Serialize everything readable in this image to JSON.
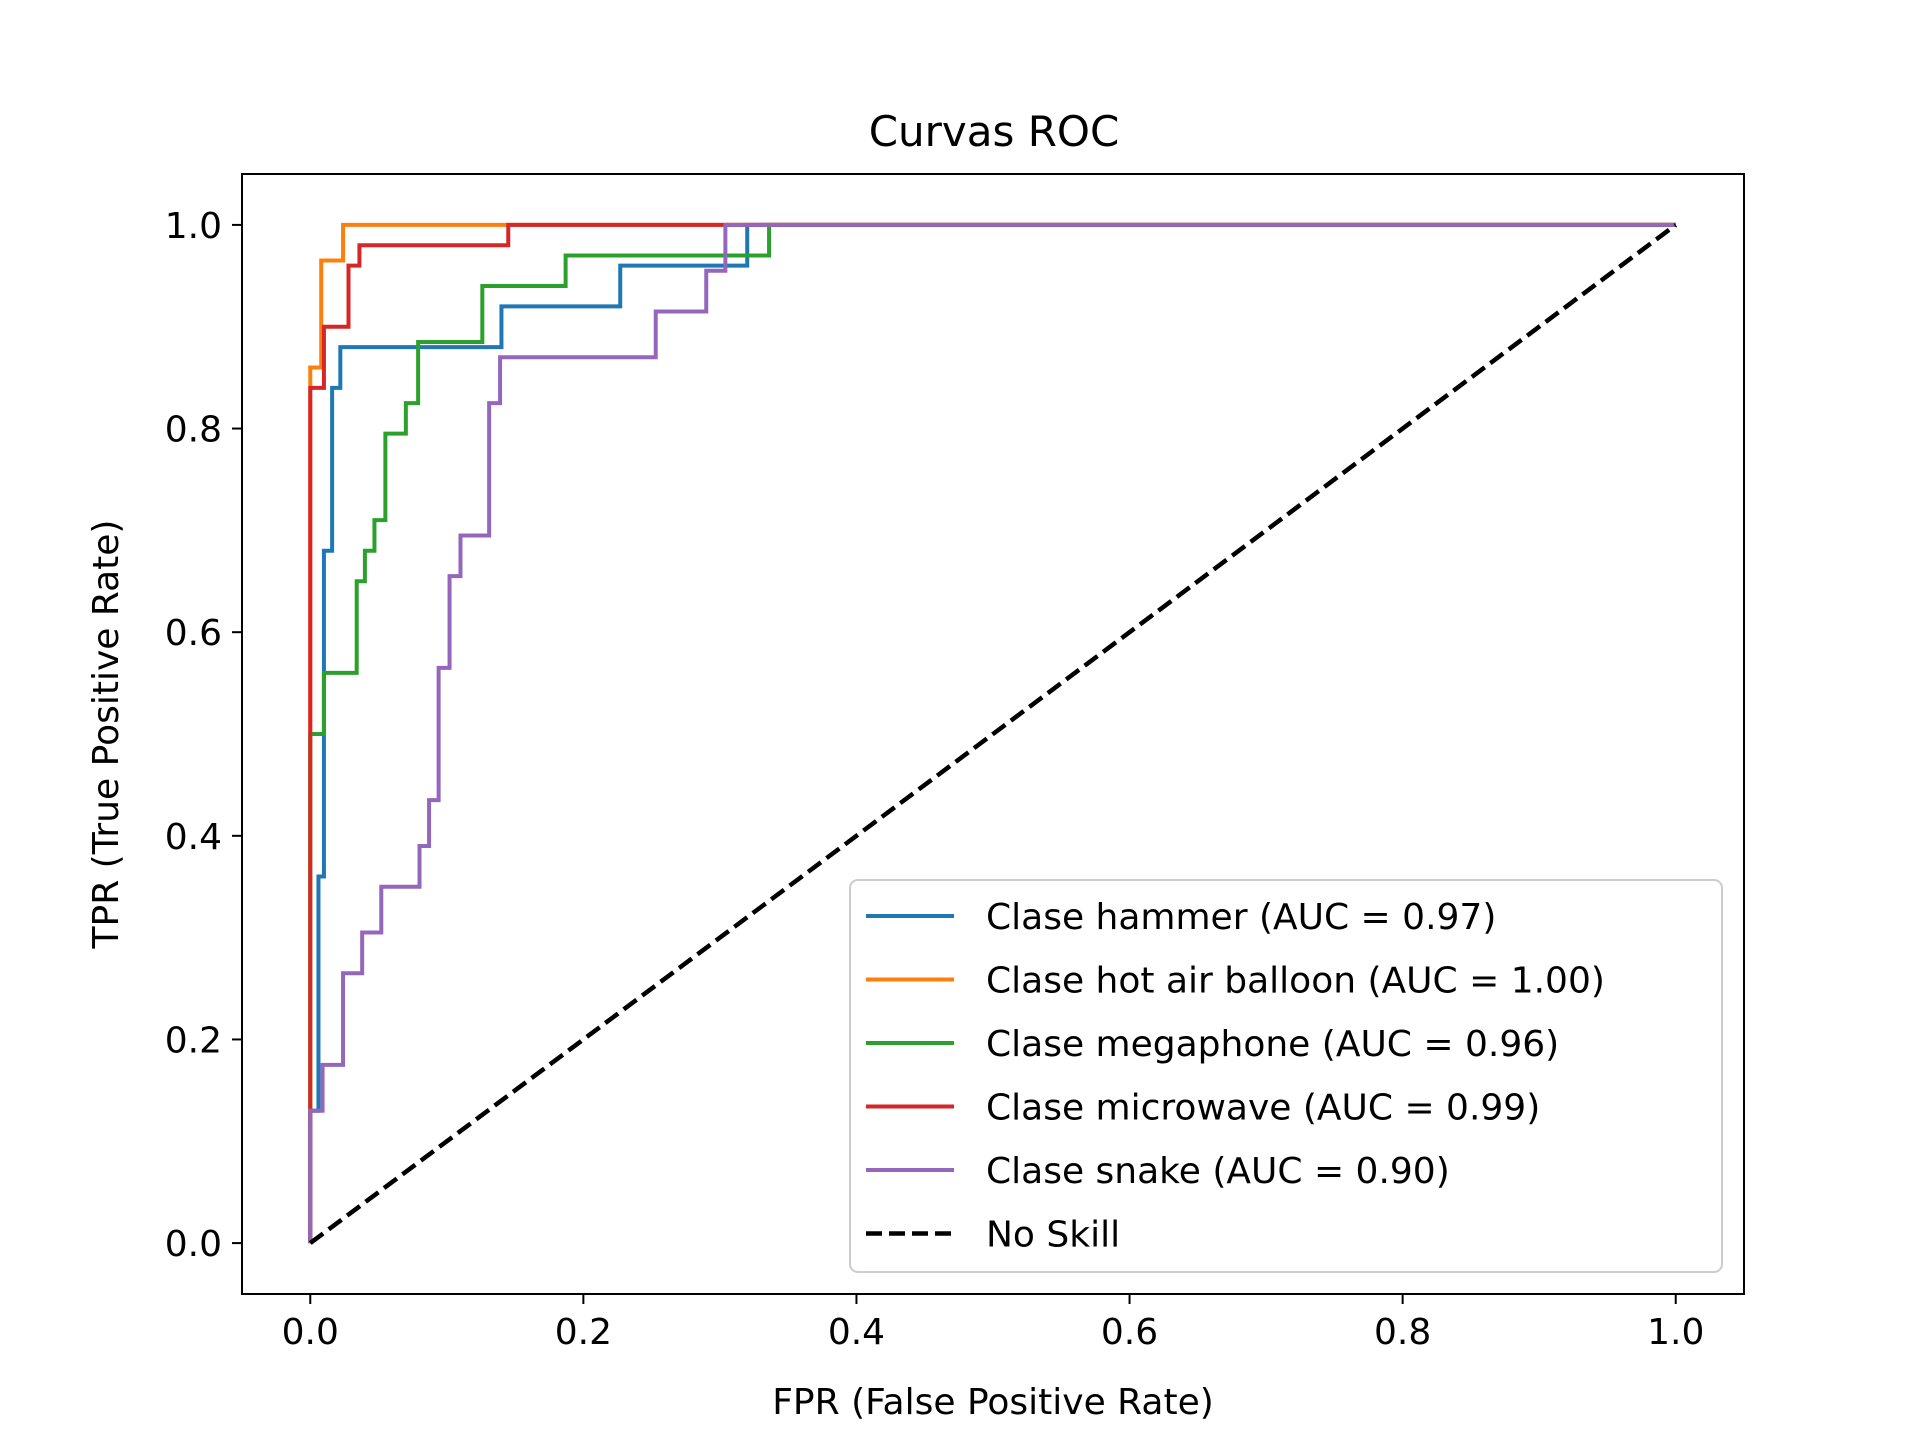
{
  "chart_data": {
    "type": "line",
    "title": "Curvas ROC",
    "xlabel": "FPR (False Positive Rate)",
    "ylabel": "TPR (True Positive Rate)",
    "xlim": [
      -0.05,
      1.05
    ],
    "ylim": [
      -0.05,
      1.05
    ],
    "x_ticks": [
      "0.0",
      "0.2",
      "0.4",
      "0.6",
      "0.8",
      "1.0"
    ],
    "y_ticks": [
      "0.0",
      "0.2",
      "0.4",
      "0.6",
      "0.8",
      "1.0"
    ],
    "grid": false,
    "legend_position": "lower-right",
    "series": [
      {
        "name": "Clase hammer (AUC = 0.97)",
        "color": "#1f77b4",
        "dash": false,
        "points": [
          [
            0,
            0
          ],
          [
            0,
            0.13
          ],
          [
            0.006,
            0.13
          ],
          [
            0.006,
            0.36
          ],
          [
            0.01,
            0.36
          ],
          [
            0.01,
            0.68
          ],
          [
            0.016,
            0.68
          ],
          [
            0.016,
            0.84
          ],
          [
            0.022,
            0.84
          ],
          [
            0.022,
            0.88
          ],
          [
            0.14,
            0.88
          ],
          [
            0.14,
            0.92
          ],
          [
            0.227,
            0.92
          ],
          [
            0.227,
            0.96
          ],
          [
            0.32,
            0.96
          ],
          [
            0.32,
            1.0
          ],
          [
            1.0,
            1.0
          ]
        ]
      },
      {
        "name": "Clase hot air balloon (AUC = 1.00)",
        "color": "#ff7f0e",
        "dash": false,
        "points": [
          [
            0,
            0
          ],
          [
            0,
            0.86
          ],
          [
            0.008,
            0.86
          ],
          [
            0.008,
            0.965
          ],
          [
            0.024,
            0.965
          ],
          [
            0.024,
            1.0
          ],
          [
            1.0,
            1.0
          ]
        ]
      },
      {
        "name": "Clase megaphone (AUC = 0.96)",
        "color": "#2ca02c",
        "dash": false,
        "points": [
          [
            0,
            0
          ],
          [
            0,
            0.5
          ],
          [
            0.01,
            0.5
          ],
          [
            0.01,
            0.56
          ],
          [
            0.034,
            0.56
          ],
          [
            0.034,
            0.65
          ],
          [
            0.04,
            0.65
          ],
          [
            0.04,
            0.68
          ],
          [
            0.047,
            0.68
          ],
          [
            0.047,
            0.71
          ],
          [
            0.055,
            0.71
          ],
          [
            0.055,
            0.795
          ],
          [
            0.07,
            0.795
          ],
          [
            0.07,
            0.825
          ],
          [
            0.079,
            0.825
          ],
          [
            0.079,
            0.885
          ],
          [
            0.126,
            0.885
          ],
          [
            0.126,
            0.94
          ],
          [
            0.187,
            0.94
          ],
          [
            0.187,
            0.97
          ],
          [
            0.3,
            0.97
          ],
          [
            0.336,
            0.97
          ],
          [
            0.336,
            1.0
          ],
          [
            1.0,
            1.0
          ]
        ]
      },
      {
        "name": "Clase microwave (AUC = 0.99)",
        "color": "#d62728",
        "dash": false,
        "points": [
          [
            0,
            0
          ],
          [
            0,
            0.84
          ],
          [
            0.01,
            0.84
          ],
          [
            0.01,
            0.9
          ],
          [
            0.028,
            0.9
          ],
          [
            0.028,
            0.96
          ],
          [
            0.036,
            0.96
          ],
          [
            0.036,
            0.98
          ],
          [
            0.145,
            0.98
          ],
          [
            0.145,
            1.0
          ],
          [
            1.0,
            1.0
          ]
        ]
      },
      {
        "name": "Clase snake (AUC = 0.90)",
        "color": "#9467bd",
        "dash": false,
        "points": [
          [
            0,
            0
          ],
          [
            0,
            0.13
          ],
          [
            0.009,
            0.13
          ],
          [
            0.009,
            0.175
          ],
          [
            0.024,
            0.175
          ],
          [
            0.024,
            0.265
          ],
          [
            0.038,
            0.265
          ],
          [
            0.038,
            0.305
          ],
          [
            0.052,
            0.305
          ],
          [
            0.052,
            0.35
          ],
          [
            0.08,
            0.35
          ],
          [
            0.08,
            0.39
          ],
          [
            0.087,
            0.39
          ],
          [
            0.087,
            0.435
          ],
          [
            0.094,
            0.435
          ],
          [
            0.094,
            0.565
          ],
          [
            0.102,
            0.565
          ],
          [
            0.102,
            0.655
          ],
          [
            0.11,
            0.655
          ],
          [
            0.11,
            0.695
          ],
          [
            0.131,
            0.695
          ],
          [
            0.131,
            0.825
          ],
          [
            0.139,
            0.825
          ],
          [
            0.139,
            0.87
          ],
          [
            0.253,
            0.87
          ],
          [
            0.253,
            0.915
          ],
          [
            0.29,
            0.915
          ],
          [
            0.29,
            0.955
          ],
          [
            0.304,
            0.955
          ],
          [
            0.304,
            1.0
          ],
          [
            1.0,
            1.0
          ]
        ]
      },
      {
        "name": "No Skill",
        "color": "#000000",
        "dash": true,
        "points": [
          [
            0,
            0
          ],
          [
            1,
            1
          ]
        ]
      }
    ]
  }
}
